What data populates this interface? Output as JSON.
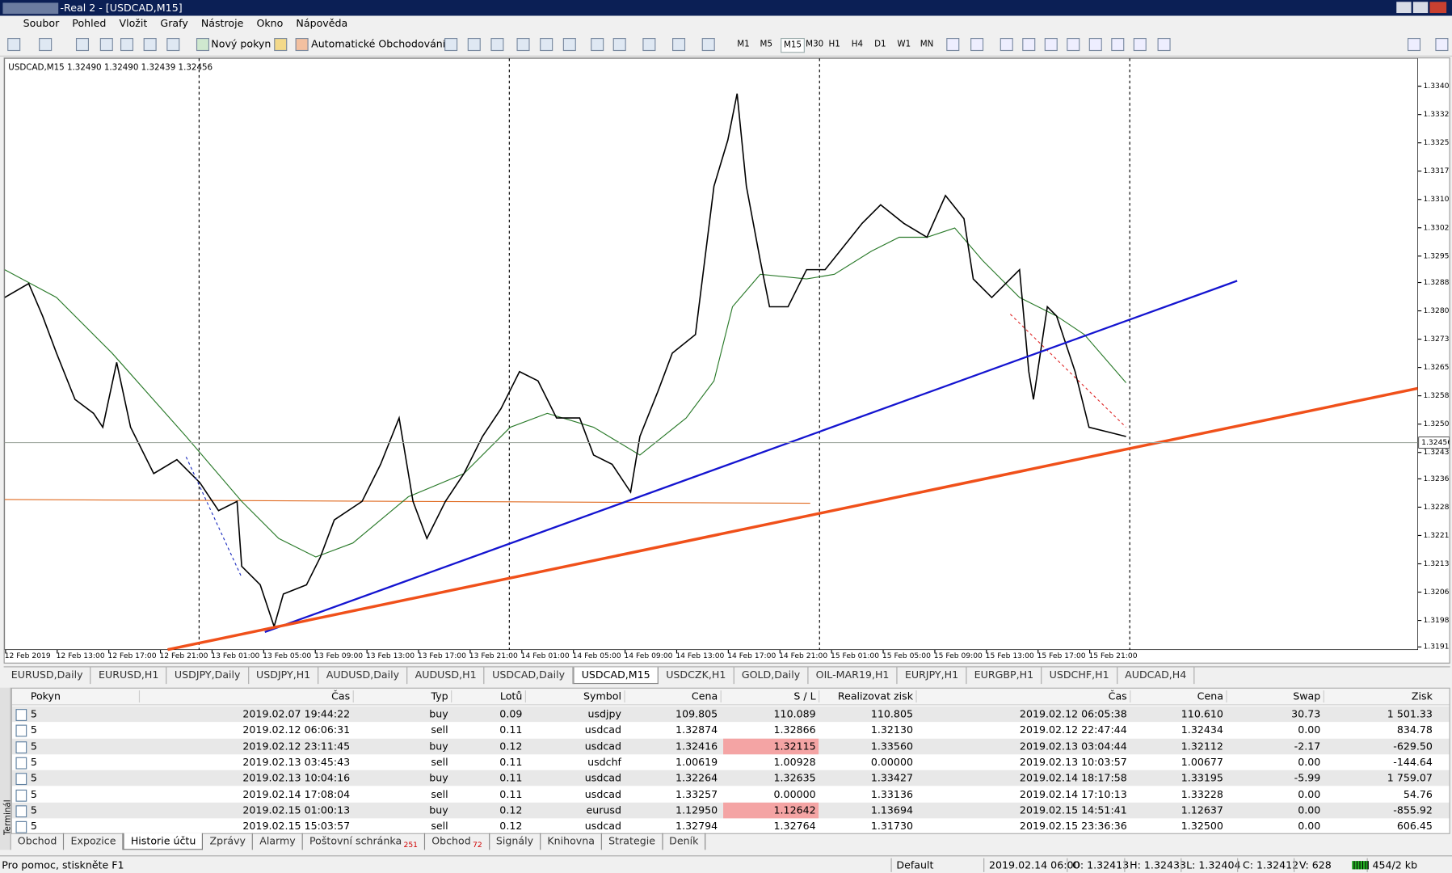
{
  "window": {
    "title": "-Real 2 - [USDCAD,M15]"
  },
  "menu": [
    "Soubor",
    "Pohled",
    "Vložit",
    "Grafy",
    "Nástroje",
    "Okno",
    "Nápověda"
  ],
  "toolbar": {
    "new_order": "Nový pokyn",
    "auto_trading": "Automatické Obchodování",
    "timeframes": [
      "M1",
      "M5",
      "M15",
      "M30",
      "H1",
      "H4",
      "D1",
      "W1",
      "MN"
    ],
    "active_timeframe": "M15"
  },
  "chart": {
    "header": "USDCAD,M15  1.32490 1.32490 1.32439 1.32456",
    "price_labels": [
      "1.33400",
      "1.33325",
      "1.33250",
      "1.33175",
      "1.33100",
      "1.33025",
      "1.32950",
      "1.32880",
      "1.32805",
      "1.32730",
      "1.32655",
      "1.32580",
      "1.32505",
      "1.32430",
      "1.32360",
      "1.32285",
      "1.32210",
      "1.32135",
      "1.32060",
      "1.31985",
      "1.31915"
    ],
    "current_price": "1.32456",
    "time_labels": [
      "12 Feb 2019",
      "12 Feb 13:00",
      "12 Feb 17:00",
      "12 Feb 21:00",
      "13 Feb 01:00",
      "13 Feb 05:00",
      "13 Feb 09:00",
      "13 Feb 13:00",
      "13 Feb 17:00",
      "13 Feb 21:00",
      "14 Feb 01:00",
      "14 Feb 05:00",
      "14 Feb 09:00",
      "14 Feb 13:00",
      "14 Feb 17:00",
      "14 Feb 21:00",
      "15 Feb 01:00",
      "15 Feb 05:00",
      "15 Feb 09:00",
      "15 Feb 13:00",
      "15 Feb 17:00",
      "15 Feb 21:00"
    ]
  },
  "chart_tabs": [
    "EURUSD,Daily",
    "EURUSD,H1",
    "USDJPY,Daily",
    "USDJPY,H1",
    "AUDUSD,Daily",
    "AUDUSD,H1",
    "USDCAD,Daily",
    "USDCAD,M15",
    "USDCZK,H1",
    "GOLD,Daily",
    "OIL-MAR19,H1",
    "EURJPY,H1",
    "EURGBP,H1",
    "USDCHF,H1",
    "AUDCAD,H4"
  ],
  "active_chart_tab": 7,
  "table": {
    "header": [
      "Pokyn",
      "Čas",
      "Typ",
      "Lotů",
      "Symbol",
      "Cena",
      "S / L",
      "Realizovat zisk",
      "Čas",
      "Cena",
      "Swap",
      "Zisk"
    ],
    "rows": [
      [
        "5",
        "2019.02.07 19:44:22",
        "buy",
        "0.09",
        "usdjpy",
        "109.805",
        "110.089",
        "110.805",
        "2019.02.12 06:05:38",
        "110.610",
        "30.73",
        "1 501.33"
      ],
      [
        "5",
        "2019.02.12 06:06:31",
        "sell",
        "0.11",
        "usdcad",
        "1.32874",
        "1.32866",
        "1.32130",
        "2019.02.12 22:47:44",
        "1.32434",
        "0.00",
        "834.78"
      ],
      [
        "5",
        "2019.02.12 23:11:45",
        "buy",
        "0.12",
        "usdcad",
        "1.32416",
        "1.32115",
        "1.33560",
        "2019.02.13 03:04:44",
        "1.32112",
        "-2.17",
        "-629.50"
      ],
      [
        "5",
        "2019.02.13 03:45:43",
        "sell",
        "0.11",
        "usdchf",
        "1.00619",
        "1.00928",
        "0.00000",
        "2019.02.13 10:03:57",
        "1.00677",
        "0.00",
        "-144.64"
      ],
      [
        "5",
        "2019.02.13 10:04:16",
        "buy",
        "0.11",
        "usdcad",
        "1.32264",
        "1.32635",
        "1.33427",
        "2019.02.14 18:17:58",
        "1.33195",
        "-5.99",
        "1 759.07"
      ],
      [
        "5",
        "2019.02.14 17:08:04",
        "sell",
        "0.11",
        "usdcad",
        "1.33257",
        "0.00000",
        "1.33136",
        "2019.02.14 17:10:13",
        "1.33228",
        "0.00",
        "54.76"
      ],
      [
        "5",
        "2019.02.15 01:00:13",
        "buy",
        "0.12",
        "eurusd",
        "1.12950",
        "1.12642",
        "1.13694",
        "2019.02.15 14:51:41",
        "1.12637",
        "0.00",
        "-855.92"
      ],
      [
        "5",
        "2019.02.15 15:03:57",
        "sell",
        "0.12",
        "usdcad",
        "1.32794",
        "1.32764",
        "1.31730",
        "2019.02.15 23:36:36",
        "1.32500",
        "0.00",
        "606.45"
      ]
    ],
    "highlight_cells": [
      [
        2,
        6
      ],
      [
        6,
        6
      ]
    ]
  },
  "terminal_label": "Terminál",
  "terminal_tabs": [
    {
      "label": "Obchod"
    },
    {
      "label": "Expozice"
    },
    {
      "label": "Historie účtu"
    },
    {
      "label": "Zprávy"
    },
    {
      "label": "Alarmy"
    },
    {
      "label": "Poštovní schránka",
      "badge": "251"
    },
    {
      "label": "Obchod",
      "badge": "72"
    },
    {
      "label": "Signály"
    },
    {
      "label": "Knihovna"
    },
    {
      "label": "Strategie"
    },
    {
      "label": "Deník"
    }
  ],
  "active_terminal_tab": 2,
  "status": {
    "help": "Pro pomoc, stiskněte F1",
    "profile": "Default",
    "time": "2019.02.14 06:00",
    "open": "O: 1.32413",
    "high": "H: 1.32433",
    "low": "L: 1.32404",
    "close": "C: 1.32412",
    "volume": "V: 628",
    "traffic": "454/2 kb"
  }
}
